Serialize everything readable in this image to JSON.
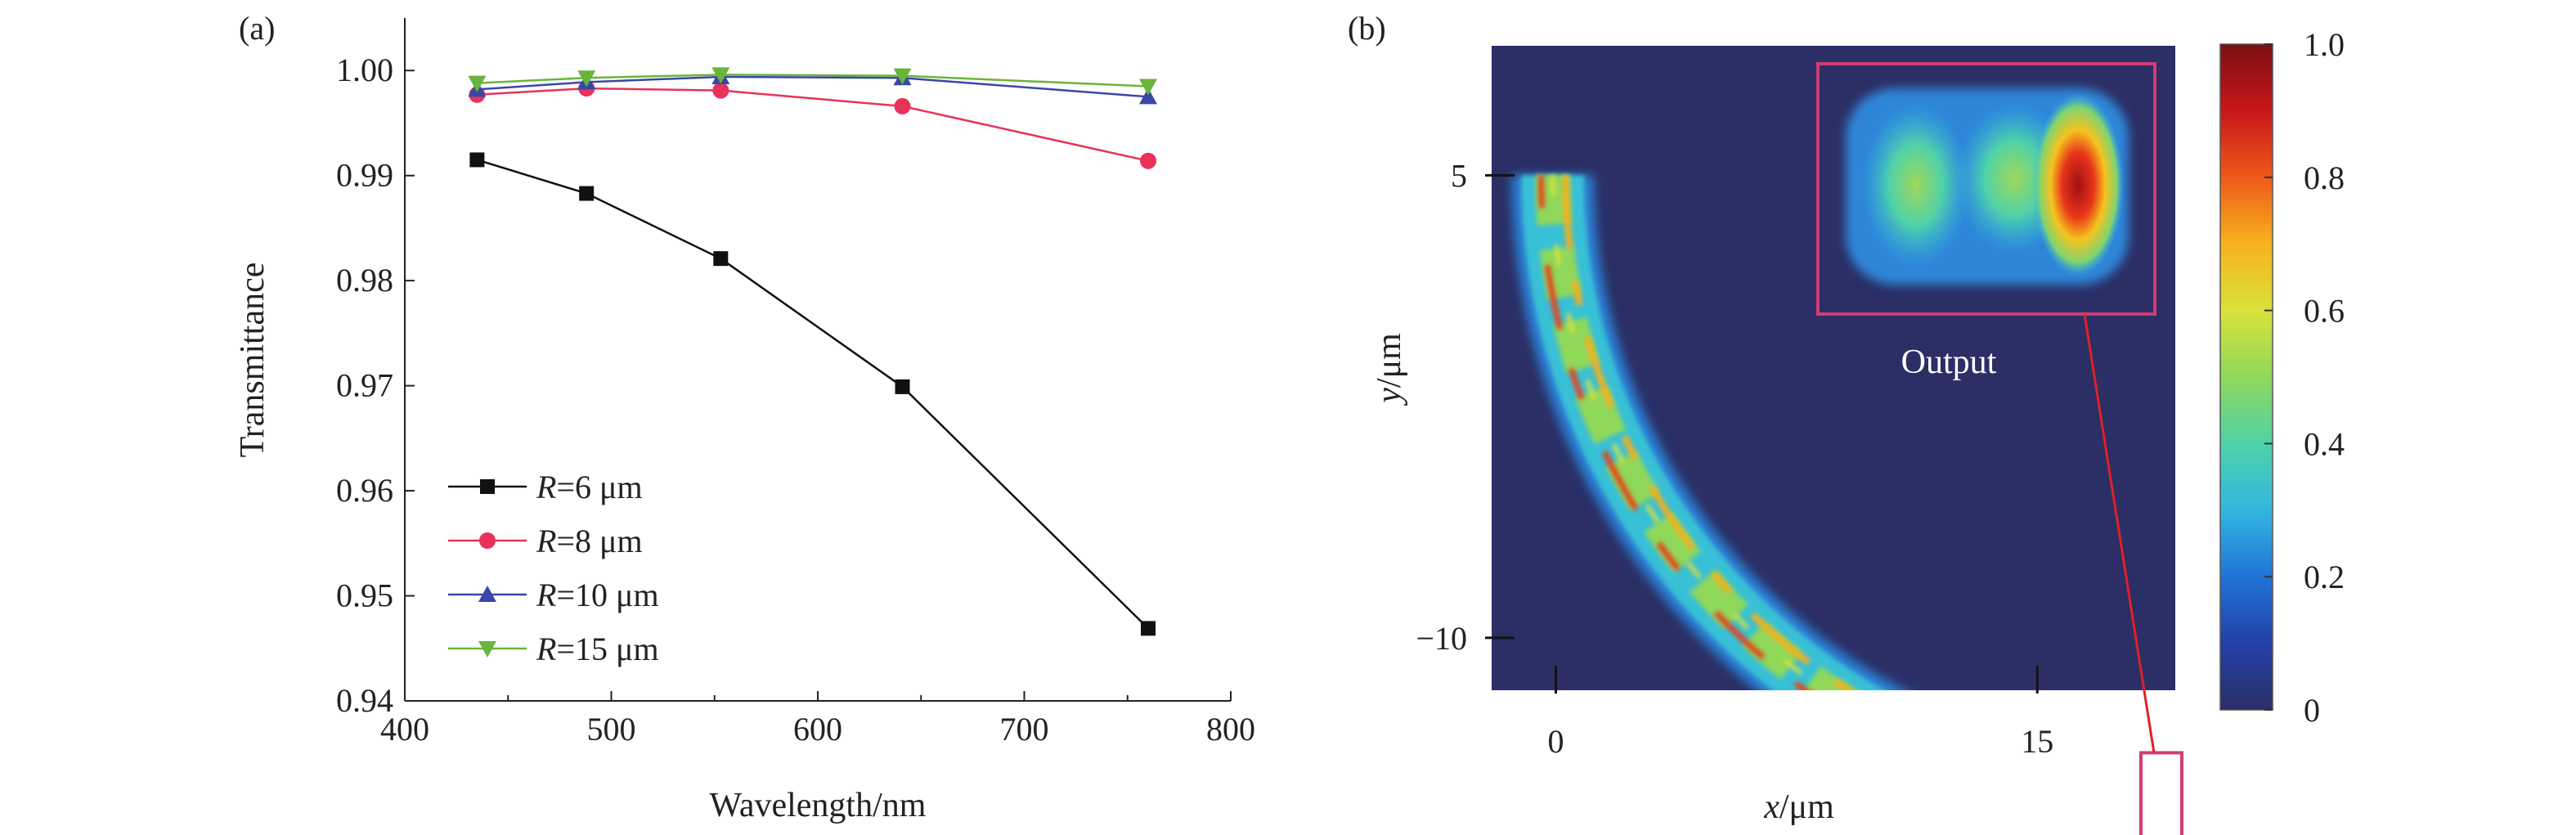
{
  "chart_data": [
    {
      "panel_label": "(a)",
      "type": "line",
      "xlabel": "Wavelength/nm",
      "ylabel": "Transmittance",
      "xlim": [
        400,
        800
      ],
      "ylim": [
        0.94,
        1.005
      ],
      "xticks": [
        400,
        500,
        600,
        700,
        800
      ],
      "yticks": [
        0.94,
        0.95,
        0.96,
        0.97,
        0.98,
        0.99,
        1.0
      ],
      "ytick_labels": [
        "0.94",
        "0.95",
        "0.96",
        "0.97",
        "0.98",
        "0.99",
        "1.00"
      ],
      "x": [
        435,
        488,
        553,
        641,
        760
      ],
      "legend_position": "lower-left",
      "grid": false,
      "series": [
        {
          "name_italic": "R",
          "name_rest": "=6 μm",
          "color": "#111111",
          "marker": "square",
          "values": [
            0.9915,
            0.9883,
            0.9821,
            0.9699,
            0.9469
          ]
        },
        {
          "name_italic": "R",
          "name_rest": "=8 μm",
          "color": "#e8325a",
          "marker": "circle",
          "values": [
            0.9977,
            0.9983,
            0.9981,
            0.9966,
            0.9914
          ]
        },
        {
          "name_italic": "R",
          "name_rest": "=10 μm",
          "color": "#3a47a6",
          "marker": "triangle-up",
          "values": [
            0.9982,
            0.9989,
            0.9994,
            0.9993,
            0.9975
          ]
        },
        {
          "name_italic": "R",
          "name_rest": "=15 μm",
          "color": "#6ab43c",
          "marker": "triangle-down",
          "values": [
            0.9988,
            0.9993,
            0.9996,
            0.9995,
            0.9985
          ]
        }
      ]
    },
    {
      "panel_label": "(b)",
      "type": "heatmap",
      "xlabel_italic": "x",
      "xlabel_rest": "/μm",
      "ylabel_italic": "y",
      "ylabel_rest": "/μm",
      "xticks": [
        0,
        15
      ],
      "yticks": [
        5,
        -10
      ],
      "ytick_labels": [
        "5",
        "−10"
      ],
      "xlim": [
        -2,
        19.3
      ],
      "ylim": [
        -11.7,
        9.2
      ],
      "background_color": "#2b2f66",
      "annotation": "Output",
      "inset_border_color": "#d23c76",
      "colorbar": {
        "ticks": [
          0,
          0.2,
          0.4,
          0.6,
          0.8,
          1.0
        ],
        "tick_labels": [
          "0",
          "0.2",
          "0.4",
          "0.6",
          "0.8",
          "1.0"
        ],
        "colors": [
          "#2b2f66",
          "#2340a8",
          "#1f74d6",
          "#33b6e0",
          "#4fd2a8",
          "#8fd85a",
          "#d9e23a",
          "#f7b21e",
          "#ee5a1a",
          "#c8161a",
          "#7d0f14"
        ]
      },
      "waveguide": {
        "bend_center": [
          19.3,
          5
        ],
        "outer_radius": 20.3,
        "inner_radius": 18.5,
        "end_x": 19.3
      }
    }
  ]
}
